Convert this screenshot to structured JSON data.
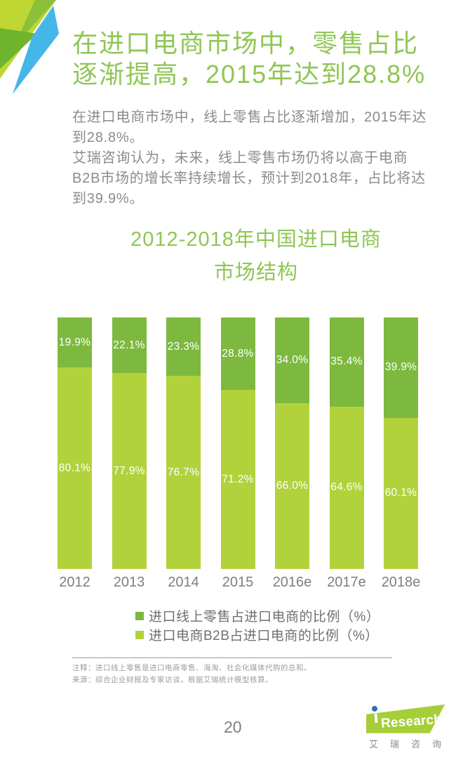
{
  "header": {
    "title": "在进口电商市场中，零售占比\n逐渐提高，2015年达到28.8%",
    "body": "在进口电商市场中，线上零售占比逐渐增加，2015年达\n到28.8%。\n艾瑞咨询认为，未来，线上零售市场仍将以高于电商\nB2B市场的增长率持续增长，预计到2018年，占比将达\n到39.9%。"
  },
  "chart_data": {
    "type": "bar",
    "stacked": true,
    "title": "2012-2018年中国进口电商\n市场结构",
    "categories": [
      "2012",
      "2013",
      "2014",
      "2015",
      "2016e",
      "2017e",
      "2018e"
    ],
    "series": [
      {
        "name": "进口线上零售占进口电商的比例（%）",
        "color": "#7cb93e",
        "values": [
          19.9,
          22.1,
          23.3,
          28.8,
          34.0,
          35.4,
          39.9
        ]
      },
      {
        "name": "进口电商B2B占进口电商的比例（%）",
        "color": "#b2d23c",
        "values": [
          80.1,
          77.9,
          76.7,
          71.2,
          66.0,
          64.6,
          60.1
        ]
      }
    ],
    "value_suffix": "%",
    "value_decimals": 1,
    "bar_label_color": "#ffffff",
    "ylim": [
      0,
      100
    ],
    "grid": false,
    "axes_visible": false,
    "legend_position": "bottom"
  },
  "notes": {
    "note": "注释：进口线上零售是进口电商零售、海淘、社会化媒体代购的总和。",
    "source": "来源：综合企业财报及专家访谈，根据艾瑞统计模型核算。"
  },
  "footer": {
    "page_number": "20",
    "logo": {
      "latin": "Research",
      "cn": "艾瑞咨询"
    }
  },
  "theme": {
    "title_green": "#8fc654",
    "text_gray": "#8b8b8b",
    "deco_lime": "#bed733",
    "deco_mid_green": "#8ac03a",
    "deco_dark_green": "#6fb42d",
    "deco_blue": "#45b6e8",
    "logo_green": "#a6ce39",
    "logo_dot_blue": "#2b72b2"
  }
}
